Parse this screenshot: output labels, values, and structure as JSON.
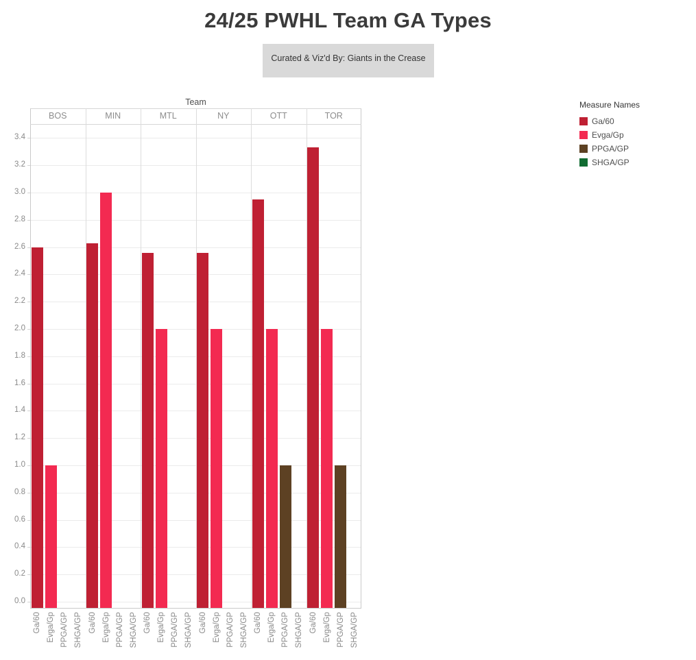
{
  "title": "24/25 PWHL Team GA Types",
  "subtitle": "Curated & Viz'd By: Giants in the Crease",
  "legend": {
    "title": "Measure Names",
    "items": [
      {
        "label": "Ga/60",
        "color": "#bf2033"
      },
      {
        "label": "Evga/Gp",
        "color": "#f32a51"
      },
      {
        "label": "PPGA/GP",
        "color": "#5d4123"
      },
      {
        "label": "SHGA/GP",
        "color": "#116c32"
      }
    ]
  },
  "chart_data": {
    "type": "bar",
    "title": "24/25 PWHL Team GA Types",
    "facet_label": "Team",
    "categories": [
      "BOS",
      "MIN",
      "MTL",
      "NY",
      "OTT",
      "TOR"
    ],
    "measures": [
      "Ga/60",
      "Evga/Gp",
      "PPGA/GP",
      "SHGA/GP"
    ],
    "series": [
      {
        "name": "Ga/60",
        "color": "#bf2033",
        "values": [
          2.6,
          2.63,
          2.56,
          2.56,
          2.95,
          3.33
        ]
      },
      {
        "name": "Evga/Gp",
        "color": "#f32a51",
        "values": [
          1.0,
          3.0,
          2.0,
          2.0,
          2.0,
          2.0
        ]
      },
      {
        "name": "PPGA/GP",
        "color": "#5d4123",
        "values": [
          0,
          0,
          0,
          0,
          1.0,
          1.0
        ]
      },
      {
        "name": "SHGA/GP",
        "color": "#116c32",
        "values": [
          0,
          0,
          0,
          0,
          0,
          0
        ]
      }
    ],
    "ylim": [
      0,
      3.4
    ],
    "ytick_step": 0.2,
    "yticks": [
      "0.0",
      "0.2",
      "0.4",
      "0.6",
      "0.8",
      "1.0",
      "1.2",
      "1.4",
      "1.6",
      "1.8",
      "2.0",
      "2.2",
      "2.4",
      "2.6",
      "2.8",
      "3.0",
      "3.2",
      "3.4"
    ],
    "grid": true,
    "legend_position": "top-right"
  }
}
